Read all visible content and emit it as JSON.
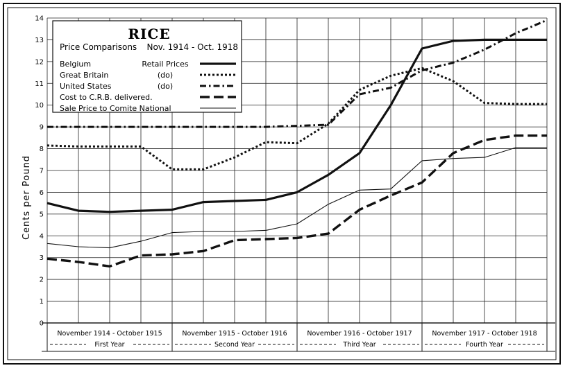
{
  "chart_data": {
    "type": "line",
    "title": "RICE",
    "subtitle": "Price Comparisons",
    "date_range": "Nov. 1914 - Oct. 1918",
    "ylabel": "Cents per Pound",
    "xlabel": "",
    "ylim": [
      0,
      14
    ],
    "yticks": [
      "0",
      "1",
      "2",
      "3",
      "4",
      "5",
      "6",
      "7",
      "8",
      "9",
      "10",
      "11",
      "12",
      "13",
      "14"
    ],
    "x": [
      0,
      1,
      2,
      3,
      4,
      5,
      6,
      7,
      8,
      9,
      10,
      11,
      12,
      13,
      14,
      15,
      16
    ],
    "xlim": [
      0,
      16
    ],
    "grid": true,
    "legend_position": "top-left",
    "year_periods": [
      {
        "range": "November 1914 - October 1915",
        "label": "First Year",
        "x0": 0,
        "x1": 4
      },
      {
        "range": "November 1915 - October 1916",
        "label": "Second Year",
        "x0": 4,
        "x1": 8
      },
      {
        "range": "November 1916 - October 1917",
        "label": "Third Year",
        "x0": 8,
        "x1": 12
      },
      {
        "range": "November 1917 - October 1918",
        "label": "Fourth Year",
        "x0": 12,
        "x1": 16
      }
    ],
    "series": [
      {
        "name": "Belgium",
        "note": "Retail Prices",
        "style": "thick-solid",
        "values": [
          5.5,
          5.15,
          5.1,
          5.15,
          5.2,
          5.55,
          5.6,
          5.65,
          6.0,
          6.8,
          7.8,
          10.0,
          12.6,
          12.95,
          13.0,
          13.0,
          13.0
        ]
      },
      {
        "name": "Great Britain",
        "note": "(do)",
        "style": "dotted",
        "values": [
          8.15,
          8.1,
          8.1,
          8.1,
          7.05,
          7.05,
          7.6,
          8.3,
          8.25,
          9.15,
          10.7,
          11.35,
          11.7,
          11.1,
          10.1,
          10.05,
          10.05
        ]
      },
      {
        "name": "United States",
        "note": "(do)",
        "style": "dash-dot",
        "values": [
          9.0,
          9.0,
          9.0,
          9.0,
          9.0,
          9.0,
          9.0,
          9.0,
          9.05,
          9.1,
          10.5,
          10.8,
          11.6,
          11.95,
          12.55,
          13.3,
          13.9
        ]
      },
      {
        "name": "Cost to C.R.B. delivered.",
        "note": "",
        "style": "long-dash",
        "values": [
          2.95,
          2.8,
          2.6,
          3.1,
          3.15,
          3.3,
          3.8,
          3.85,
          3.9,
          4.1,
          5.2,
          5.85,
          6.45,
          7.8,
          8.4,
          8.6,
          8.6
        ]
      },
      {
        "name": "Sale Price to Comite National",
        "note": "",
        "style": "thin-solid",
        "values": [
          3.65,
          3.5,
          3.45,
          3.75,
          4.15,
          4.2,
          4.2,
          4.25,
          4.55,
          5.45,
          6.1,
          6.15,
          7.45,
          7.55,
          7.6,
          8.05,
          8.05
        ]
      }
    ]
  }
}
